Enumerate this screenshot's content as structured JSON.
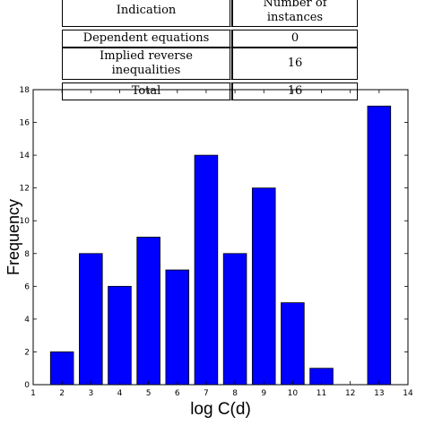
{
  "table": {
    "header": [
      "Indication",
      "Number of instances"
    ],
    "rows": [
      [
        "Dependent equations",
        "0"
      ],
      [
        "Implied reverse inequalities",
        "16"
      ]
    ],
    "total": [
      "Total",
      "16"
    ]
  },
  "chart_data": {
    "type": "bar",
    "title": "",
    "xlabel": "log C(d)",
    "ylabel": "Frequency",
    "x": [
      2,
      3,
      4,
      5,
      6,
      7,
      8,
      9,
      10,
      11,
      12,
      13
    ],
    "values": [
      2,
      8,
      6,
      9,
      7,
      14,
      8,
      12,
      5,
      1,
      0,
      17
    ],
    "xlim": [
      1,
      14
    ],
    "ylim": [
      0,
      18
    ],
    "xticks": [
      1,
      2,
      3,
      4,
      5,
      6,
      7,
      8,
      9,
      10,
      11,
      12,
      13,
      14
    ],
    "yticks": [
      0,
      2,
      4,
      6,
      8,
      10,
      12,
      14,
      16,
      18
    ],
    "bar_color": "#0000ff",
    "grid": false
  }
}
